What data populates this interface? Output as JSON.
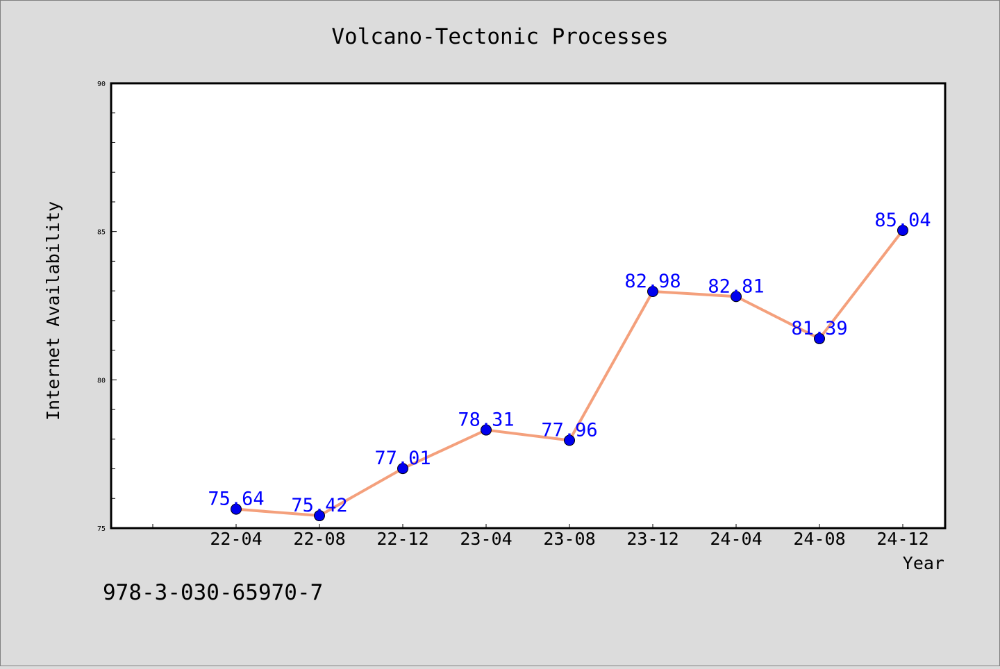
{
  "chart_data": {
    "type": "line",
    "title": "Volcano-Tectonic Processes",
    "xlabel": "Year",
    "ylabel": "Internet Availability",
    "categories": [
      "22-04",
      "22-08",
      "22-12",
      "23-04",
      "23-08",
      "23-12",
      "24-04",
      "24-08",
      "24-12"
    ],
    "series": [
      {
        "values": [
          75.64,
          75.42,
          77.01,
          78.31,
          77.96,
          82.98,
          82.81,
          81.39,
          85.04
        ],
        "labels": [
          "75.64",
          "75.42",
          "77.01",
          "78.31",
          "77.96",
          "82.98",
          "82.81",
          "81.39",
          "85.04"
        ],
        "line_color": "#f4a07c",
        "marker_color": "#0000ee",
        "label_color": "#0000ff"
      }
    ],
    "yticks": [
      75,
      80,
      85,
      90
    ],
    "ytick_labels": [
      "75",
      "80",
      "85",
      "90"
    ],
    "ylim": [
      75,
      90
    ],
    "grid": false,
    "legend": "none"
  },
  "footer": {
    "isbn": "978-3-030-65970-7"
  },
  "colors": {
    "background": "#dcdcdc",
    "plot_area": "#ffffff"
  }
}
